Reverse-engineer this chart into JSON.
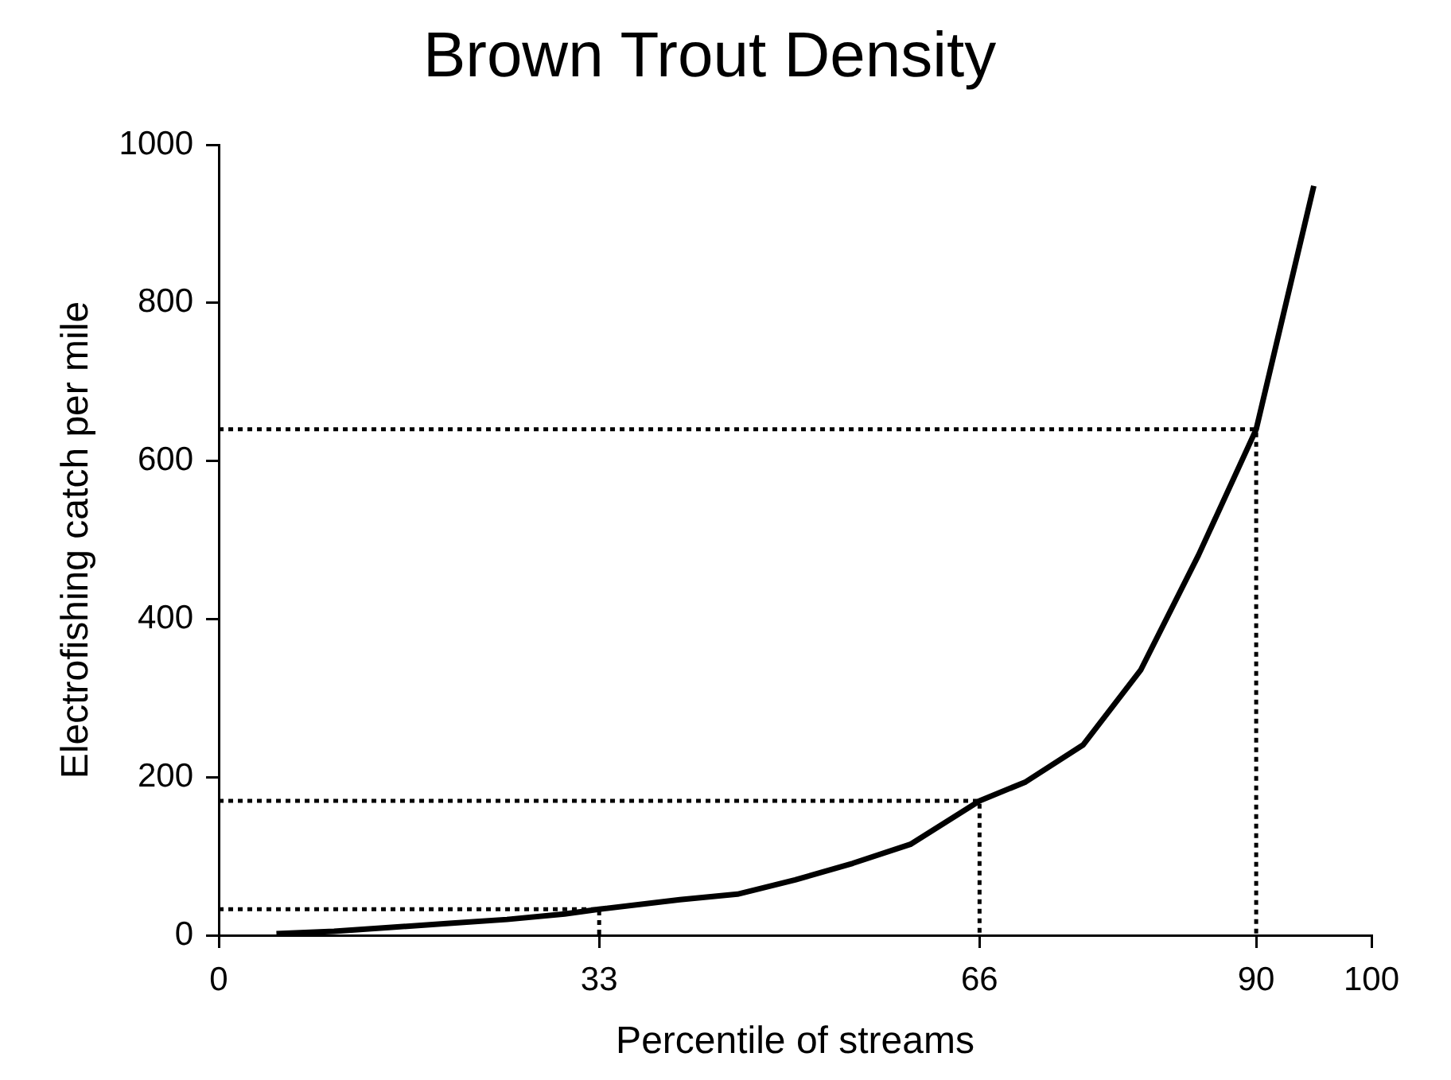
{
  "chart_data": {
    "type": "line",
    "title": "Brown Trout Density",
    "xlabel": "Percentile of streams",
    "ylabel": "Electrofishing catch per mile",
    "xlim": [
      0,
      100
    ],
    "xticks": [
      0,
      33,
      66,
      90,
      100
    ],
    "ylim": [
      0,
      1000
    ],
    "yticks": [
      0,
      200,
      400,
      600,
      800,
      1000
    ],
    "grid": false,
    "legend": false,
    "marker": "none",
    "series": [
      {
        "color": "#000000",
        "line_style": "solid",
        "x": [
          5,
          10,
          15,
          20,
          25,
          30,
          33,
          40,
          45,
          50,
          55,
          60,
          66,
          70,
          75,
          80,
          85,
          90,
          95
        ],
        "values": [
          2,
          5,
          10,
          15,
          20,
          27,
          33,
          45,
          52,
          70,
          91,
          115,
          170,
          194,
          241,
          336,
          481,
          640,
          948
        ]
      },
      {
        "color": "#000000",
        "line_style": "dotted",
        "x": [
          0,
          33,
          33
        ],
        "values": [
          33,
          33,
          0
        ]
      },
      {
        "color": "#000000",
        "line_style": "dotted",
        "x": [
          0,
          66,
          66
        ],
        "values": [
          170,
          170,
          0
        ]
      },
      {
        "color": "#000000",
        "line_style": "dotted",
        "x": [
          0,
          90,
          90
        ],
        "values": [
          640,
          640,
          0
        ]
      }
    ]
  }
}
